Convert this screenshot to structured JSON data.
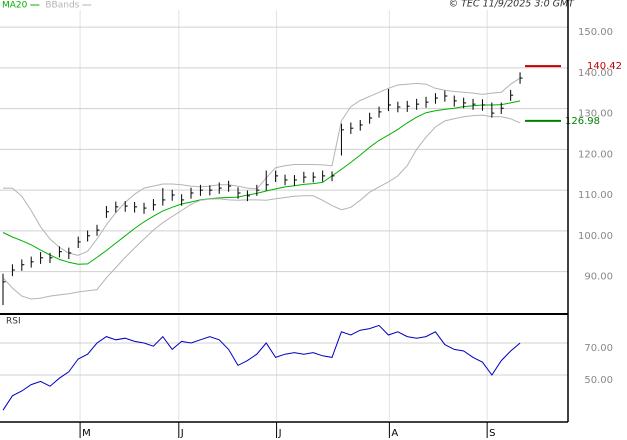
{
  "source": "© TEC 11/9/2025 3:0 GMT",
  "chart_data": [
    {
      "type": "ohlc",
      "color": "#000000",
      "xlim": [
        -0.32,
        60.1
      ],
      "ylim": [
        80.1,
        154.2
      ],
      "yticks": [
        {
          "value": 90,
          "label": "90.00"
        },
        {
          "value": 100,
          "label": "100.00"
        },
        {
          "value": 110,
          "label": "110.00"
        },
        {
          "value": 120,
          "label": "120.00"
        },
        {
          "value": 130,
          "label": "130.00"
        },
        {
          "value": 140,
          "label": "140.00"
        },
        {
          "value": 150,
          "label": "150.00"
        }
      ],
      "grid": true,
      "high": [
        89.5,
        91.8,
        93.0,
        93.7,
        94.8,
        94.6,
        96.2,
        95.9,
        98.6,
        100.1,
        101.5,
        106.1,
        107.2,
        107.3,
        107.1,
        106.9,
        107.8,
        110.5,
        110.1,
        109.0,
        110.6,
        111.3,
        111.2,
        111.9,
        112.3,
        110.7,
        109.9,
        111.3,
        114.8,
        114.8,
        113.8,
        113.7,
        114.5,
        114.4,
        114.8,
        114.6,
        126.3,
        126.6,
        127.2,
        129.0,
        130.5,
        134.8,
        131.7,
        131.9,
        132.4,
        132.9,
        133.8,
        134.4,
        133.2,
        132.7,
        132.4,
        132.3,
        131.5,
        131.5,
        134.6,
        138.9
      ],
      "low": [
        81.8,
        88.9,
        90.2,
        91.0,
        91.9,
        92.1,
        93.5,
        93.1,
        95.8,
        97.4,
        98.8,
        103.2,
        104.5,
        104.7,
        104.5,
        104.2,
        105.0,
        106.2,
        107.4,
        106.2,
        107.9,
        108.6,
        108.7,
        109.1,
        109.6,
        107.9,
        107.3,
        108.6,
        109.9,
        112.0,
        111.2,
        111.1,
        111.8,
        111.9,
        112.1,
        112.2,
        118.5,
        123.8,
        124.6,
        126.3,
        127.8,
        129.4,
        129.1,
        129.2,
        129.7,
        130.2,
        131.2,
        131.7,
        130.5,
        130.1,
        129.7,
        129.5,
        127.8,
        128.7,
        131.9,
        136.1
      ],
      "close": [
        87.5,
        90.4,
        91.7,
        92.4,
        93.4,
        93.4,
        94.9,
        94.6,
        97.3,
        98.8,
        100.2,
        104.7,
        105.9,
        106.1,
        105.9,
        105.6,
        106.4,
        107.6,
        108.8,
        107.6,
        109.3,
        110.0,
        110.0,
        110.5,
        111.0,
        109.3,
        108.6,
        110.0,
        111.3,
        113.5,
        112.5,
        112.5,
        113.2,
        113.2,
        113.5,
        113.5,
        124.8,
        125.2,
        126.0,
        127.7,
        129.2,
        130.9,
        130.4,
        130.6,
        131.1,
        131.6,
        132.6,
        133.1,
        131.9,
        131.4,
        131.1,
        130.9,
        128.9,
        130.1,
        133.3,
        137.5
      ],
      "series": [
        {
          "name": "MA20",
          "color": "#00b000",
          "values": [
            99.6,
            98.5,
            97.6,
            96.6,
            95.3,
            94.1,
            93.0,
            92.3,
            91.8,
            91.9,
            93.5,
            95.2,
            97.0,
            98.8,
            100.6,
            102.2,
            103.6,
            104.9,
            105.8,
            106.6,
            107.1,
            107.6,
            107.9,
            108.1,
            108.2,
            108.3,
            108.8,
            109.2,
            109.8,
            110.3,
            110.8,
            111.1,
            111.4,
            111.6,
            111.9,
            113.5,
            115.1,
            116.8,
            118.6,
            120.5,
            122.2,
            123.5,
            124.9,
            126.5,
            127.9,
            129.0,
            129.5,
            129.8,
            130.1,
            130.5,
            130.7,
            130.9,
            130.9,
            131.0,
            131.4,
            131.9
          ]
        },
        {
          "name": "BBands",
          "color": "#b4b4b4",
          "upper": [
            110.5,
            110.5,
            108.5,
            105,
            101,
            98,
            96,
            94.5,
            94,
            95,
            98,
            101.5,
            104.5,
            107,
            109,
            110.5,
            111,
            111.5,
            111.5,
            111.3,
            111,
            110.8,
            111,
            111.3,
            111.3,
            111,
            110.5,
            110.3,
            113,
            115.5,
            116,
            116.3,
            116.3,
            116.3,
            116.2,
            116,
            127,
            130.5,
            132,
            133,
            134,
            135,
            135.8,
            136,
            136.2,
            136,
            135,
            134.5,
            134.2,
            134,
            133.8,
            133.5,
            133.8,
            134,
            136,
            137.5
          ],
          "lower": [
            88.5,
            86,
            84,
            83.3,
            83.5,
            84,
            84.3,
            84.6,
            85,
            85.3,
            85.6,
            88.5,
            91,
            93.5,
            95.8,
            98,
            100.2,
            102,
            103.5,
            105,
            106.5,
            107.5,
            107.8,
            107.9,
            107.6,
            107.5,
            107.6,
            107.6,
            107.5,
            107.9,
            108.2,
            108.5,
            108.6,
            108.6,
            107.5,
            106.2,
            105.2,
            105.8,
            107.5,
            109.5,
            110.8,
            112,
            113.5,
            116,
            120,
            123,
            125.5,
            127,
            127.5,
            128,
            128.3,
            128.4,
            128,
            128,
            127.5,
            126.5
          ]
        }
      ],
      "levels": [
        {
          "value": 140.42,
          "color": "#c00000"
        },
        {
          "value": 126.98,
          "color": "#008000"
        }
      ]
    },
    {
      "type": "line",
      "title": "RSI",
      "color": "#0000c0",
      "xlim": [
        -0.32,
        60.1
      ],
      "xticks": [
        {
          "value": 8.2,
          "label": "M"
        },
        {
          "value": 18.7,
          "label": "J"
        },
        {
          "value": 29.1,
          "label": "J"
        },
        {
          "value": 41.1,
          "label": "A"
        },
        {
          "value": 51.5,
          "label": "S"
        }
      ],
      "ylim": [
        21.9,
        86.9
      ],
      "yticks": [
        {
          "value": 50,
          "label": "50.00"
        },
        {
          "value": 70,
          "label": "70.00"
        }
      ],
      "grid": true,
      "values": [
        28,
        37,
        40,
        44,
        46,
        43,
        48,
        52,
        60,
        63,
        70,
        74,
        72,
        73,
        71,
        70,
        68,
        74,
        66,
        71,
        70,
        72,
        74,
        72,
        66,
        56,
        59,
        63,
        70,
        61,
        63,
        64,
        63,
        64,
        62,
        61,
        77,
        75,
        78,
        79,
        81,
        75,
        77,
        74,
        73,
        74,
        77,
        69,
        66,
        65,
        61,
        58,
        50,
        59,
        65,
        70
      ]
    }
  ]
}
